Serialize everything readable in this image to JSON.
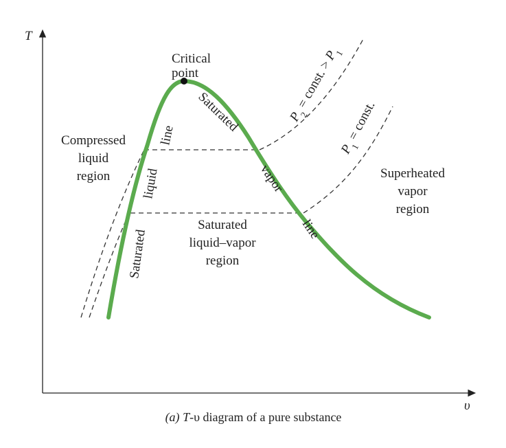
{
  "axes": {
    "y_label": "T",
    "x_label": "υ"
  },
  "labels": {
    "critical_point": [
      "Critical",
      "point"
    ],
    "compressed_region": [
      "Compressed",
      "liquid",
      "region"
    ],
    "superheated_region": [
      "Superheated",
      "vapor",
      "region"
    ],
    "two_phase_region": [
      "Saturated",
      "liquid–vapor",
      "region"
    ],
    "sat_liquid_line": {
      "word1": "Saturated",
      "word2": "liquid",
      "word3": "line"
    },
    "sat_vapor_line": {
      "word1": "Saturated",
      "word2": "vapor",
      "word3": "line"
    },
    "isobar_p2": {
      "p": "P",
      "sub": "2",
      "mid": " = const. > ",
      "p2": "P",
      "sub2": "1"
    },
    "isobar_p1": {
      "p": "P",
      "sub": "1",
      "rest": " = const."
    }
  },
  "caption": {
    "prefix": "(a)",
    "t": "T",
    "dash": "-",
    "v": "υ",
    "rest": " diagram of a pure substance"
  },
  "colors": {
    "saturation_curve": "#5bab4e",
    "axis": "#222222",
    "isobar": "#333333"
  }
}
